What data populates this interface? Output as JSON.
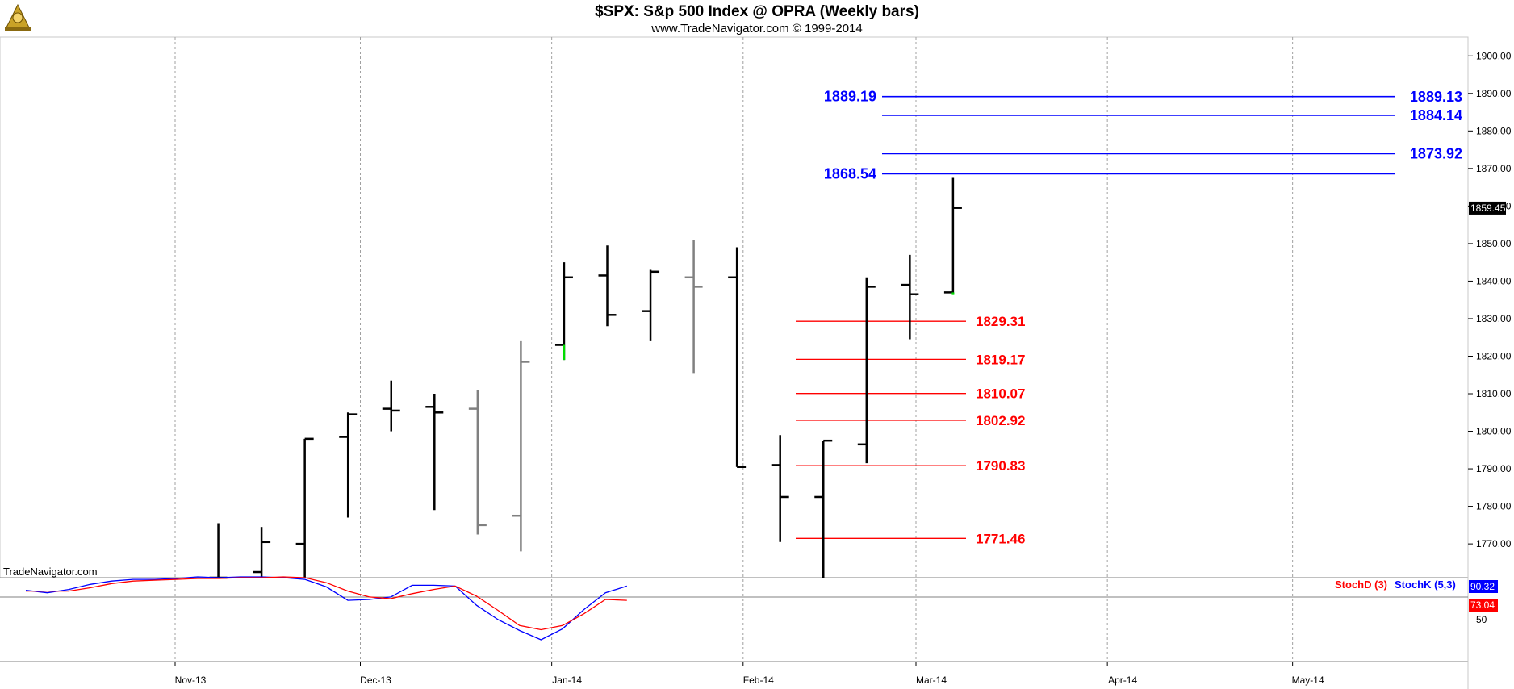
{
  "header": {
    "title": "$SPX:  S&p 500 Index @ OPRA  (Weekly bars)",
    "subtitle": "www.TradeNavigator.com © 1999-2014",
    "logo_icon": "trade-navigator-logo-icon"
  },
  "watermark": "TradeNavigator.com",
  "colors": {
    "up_bar": "#000000",
    "gray_bar": "#808080",
    "green_tick": "#00dd00",
    "blue_levels": "#0000ff",
    "red_levels": "#ff0000",
    "stoch_k": "#0000ff",
    "stoch_d": "#ff0000",
    "grid": "#a0a0a0"
  },
  "chart_data": [
    {
      "type": "ohlc",
      "title": "$SPX:  S&p 500 Index @ OPRA  (Weekly bars)",
      "subtitle": "www.TradeNavigator.com © 1999-2014",
      "ylim": [
        1761,
        1905
      ],
      "yticks": [
        "1770.00",
        "1780.00",
        "1790.00",
        "1800.00",
        "1810.00",
        "1820.00",
        "1830.00",
        "1840.00",
        "1850.00",
        "1860.00",
        "1870.00",
        "1880.00",
        "1890.00",
        "1900.00"
      ],
      "xticks": [
        "Nov-13",
        "Dec-13",
        "Jan-14",
        "Feb-14",
        "Mar-14",
        "Apr-14",
        "May-14"
      ],
      "grid": true,
      "last_price_label": "1859.45",
      "bars": [
        {
          "date": "2013-11-08",
          "open": 1761,
          "high": 1775.5,
          "low": 1761,
          "close": 1761,
          "color": "black"
        },
        {
          "date": "2013-11-15",
          "open": 1762.5,
          "high": 1774.5,
          "low": 1761,
          "close": 1770.5,
          "color": "black"
        },
        {
          "date": "2013-11-22",
          "open": 1770,
          "high": 1798,
          "low": 1761,
          "close": 1798,
          "color": "black"
        },
        {
          "date": "2013-11-29",
          "open": 1798.5,
          "high": 1805,
          "low": 1777,
          "close": 1804.5,
          "color": "black"
        },
        {
          "date": "2013-12-06",
          "open": 1806,
          "high": 1813.5,
          "low": 1800,
          "close": 1805.5,
          "color": "black"
        },
        {
          "date": "2013-12-13",
          "open": 1806.5,
          "high": 1810,
          "low": 1779,
          "close": 1805,
          "color": "black"
        },
        {
          "date": "2013-12-20",
          "open": 1806,
          "high": 1811,
          "low": 1772.5,
          "close": 1775,
          "color": "gray"
        },
        {
          "date": "2013-12-27",
          "open": 1777.5,
          "high": 1824,
          "low": 1768,
          "close": 1818.5,
          "color": "gray"
        },
        {
          "date": "2014-01-03",
          "open": 1823,
          "high": 1845,
          "low": 1819,
          "close": 1841,
          "color": "black"
        },
        {
          "date": "2014-01-10",
          "open": 1841.5,
          "high": 1849.5,
          "low": 1828,
          "close": 1831,
          "color": "black"
        },
        {
          "date": "2014-01-17",
          "open": 1832,
          "high": 1843,
          "low": 1824,
          "close": 1842.5,
          "color": "black"
        },
        {
          "date": "2014-01-24",
          "open": 1841,
          "high": 1851,
          "low": 1815.5,
          "close": 1838.5,
          "color": "gray"
        },
        {
          "date": "2014-01-31",
          "open": 1841,
          "high": 1849,
          "low": 1790.5,
          "close": 1790.5,
          "color": "black"
        },
        {
          "date": "2014-02-07",
          "open": 1791,
          "high": 1799,
          "low": 1770.5,
          "close": 1782.5,
          "color": "black"
        },
        {
          "date": "2014-02-14",
          "open": 1782.5,
          "high": 1797.5,
          "low": 1761,
          "close": 1797.5,
          "color": "black"
        },
        {
          "date": "2014-02-21",
          "open": 1796.5,
          "high": 1841,
          "low": 1791.5,
          "close": 1838.5,
          "color": "black"
        },
        {
          "date": "2014-02-28",
          "open": 1839,
          "high": 1847,
          "low": 1824.5,
          "close": 1836.5,
          "color": "black"
        },
        {
          "date": "2014-03-07",
          "open": 1837,
          "high": 1867.5,
          "low": 1836.5,
          "close": 1859.5,
          "color": "black"
        }
      ],
      "levels": [
        {
          "name": "1889.19",
          "value": 1889.19,
          "color": "blue",
          "label_side": "left"
        },
        {
          "name": "1889.13",
          "value": 1889.13,
          "color": "blue",
          "label_side": "right"
        },
        {
          "name": "1884.14",
          "value": 1884.14,
          "color": "blue",
          "label_side": "right"
        },
        {
          "name": "1873.92",
          "value": 1873.92,
          "color": "blue",
          "label_side": "right"
        },
        {
          "name": "1868.54",
          "value": 1868.54,
          "color": "blue",
          "label_side": "left"
        },
        {
          "name": "1829.31",
          "value": 1829.31,
          "color": "red",
          "label_side": "right"
        },
        {
          "name": "1819.17",
          "value": 1819.17,
          "color": "red",
          "label_side": "right"
        },
        {
          "name": "1810.07",
          "value": 1810.07,
          "color": "red",
          "label_side": "right"
        },
        {
          "name": "1802.92",
          "value": 1802.92,
          "color": "red",
          "label_side": "right"
        },
        {
          "name": "1790.83",
          "value": 1790.83,
          "color": "red",
          "label_side": "right"
        },
        {
          "name": "1771.46",
          "value": 1771.46,
          "color": "red",
          "label_side": "right"
        }
      ]
    },
    {
      "type": "line",
      "legend": [
        "StochD (3)",
        "StochK (5,3)"
      ],
      "ylim": [
        0,
        100
      ],
      "yticks": [
        "50"
      ],
      "series": [
        {
          "name": "StochK (5,3)",
          "color": "blue",
          "last_label": "90.32",
          "values": [
            85,
            82,
            86,
            92,
            96,
            98,
            98,
            99,
            101,
            100,
            101,
            101,
            100,
            98,
            89,
            73,
            74,
            77,
            91,
            91,
            90,
            67,
            50,
            37,
            26,
            39,
            62,
            82,
            90
          ]
        },
        {
          "name": "StochD (3)",
          "color": "red",
          "last_label": "73.04",
          "values": [
            84,
            84,
            84,
            88,
            93,
            96,
            97,
            98,
            99,
            99,
            100,
            100,
            101,
            100,
            94,
            84,
            77,
            75,
            81,
            86,
            90,
            78,
            61,
            43,
            38,
            43,
            57,
            74,
            73
          ]
        }
      ]
    }
  ]
}
